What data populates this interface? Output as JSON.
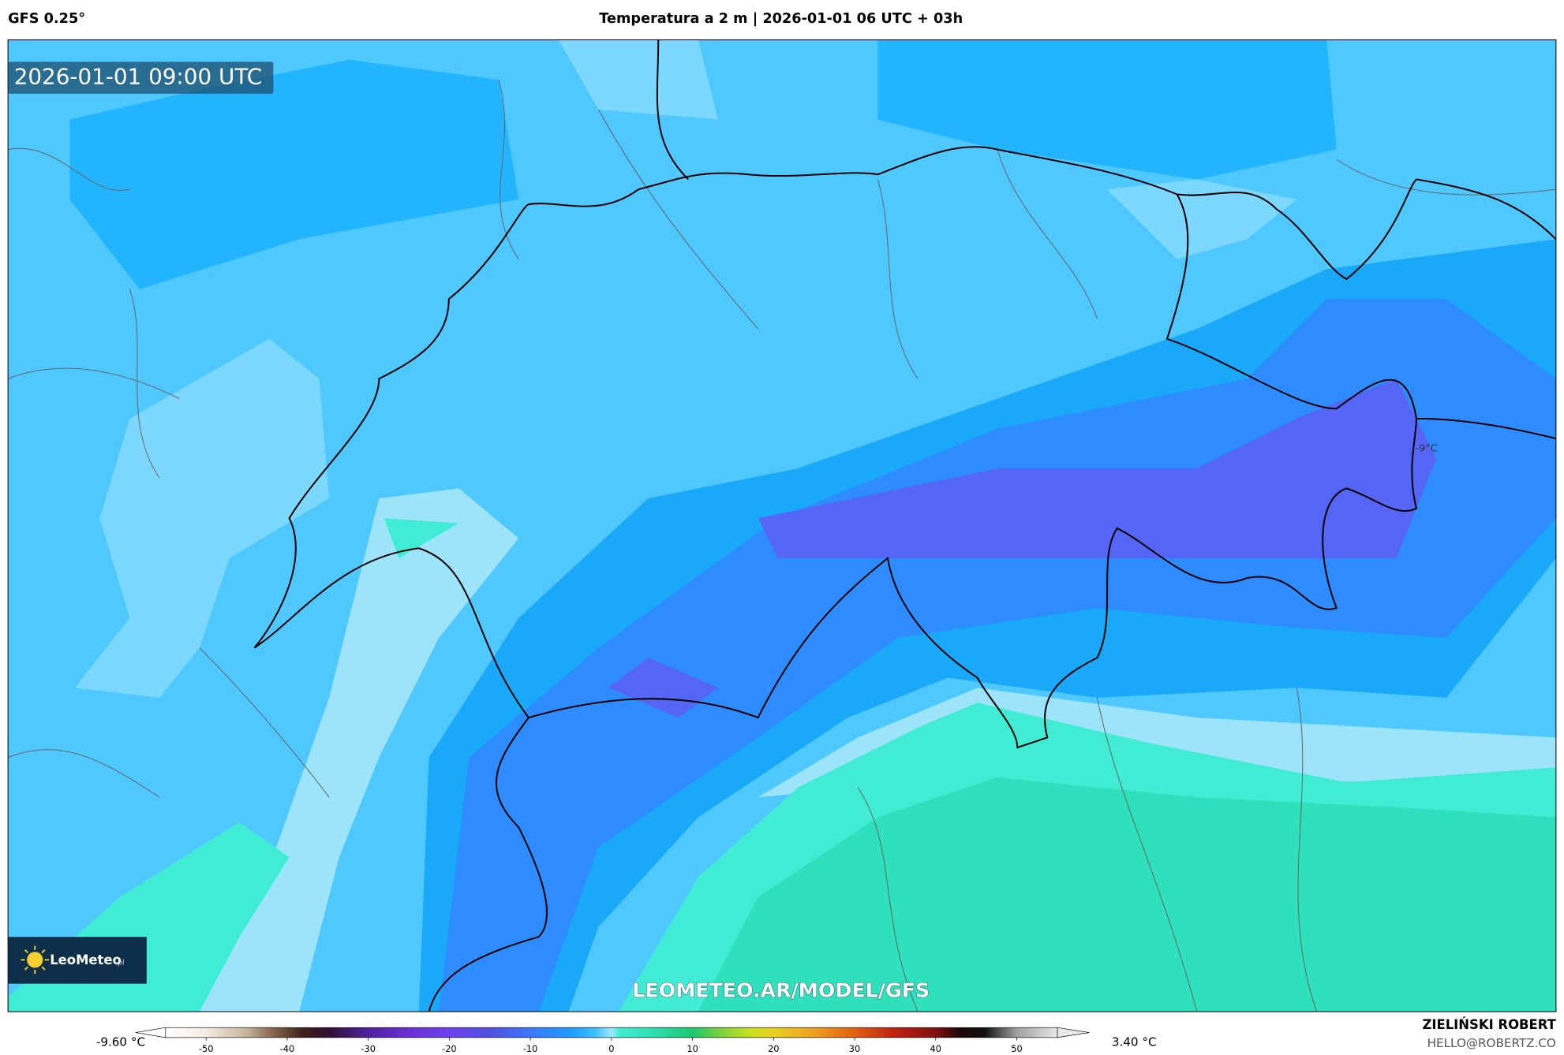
{
  "header": {
    "model": "GFS 0.25°",
    "title": "Temperatura a 2 m | 2026-01-01 06 UTC + 03h"
  },
  "map": {
    "timestamp": "2026-01-01 09:00 UTC",
    "point_label": "-9°C",
    "watermark": "LEOMETEO.AR/MODEL/GFS",
    "logo": {
      "name": "LeoMeteo",
      "suffix": ".pl"
    }
  },
  "colorbar": {
    "min_label": "-9.60 °C",
    "max_label": "3.40 °C",
    "clim": [
      -55,
      55
    ],
    "ticks": [
      -50,
      -40,
      -30,
      -20,
      -10,
      0,
      10,
      20,
      30,
      40,
      50
    ],
    "stops": [
      {
        "value": -55,
        "color": "#ffffff"
      },
      {
        "value": -50,
        "color": "#f2ece4"
      },
      {
        "value": -45,
        "color": "#c8b49a"
      },
      {
        "value": -42,
        "color": "#8a6a50"
      },
      {
        "value": -38,
        "color": "#402018"
      },
      {
        "value": -35,
        "color": "#301030"
      },
      {
        "value": -30,
        "color": "#5020a0"
      },
      {
        "value": -25,
        "color": "#6a30d8"
      },
      {
        "value": -20,
        "color": "#7040f0"
      },
      {
        "value": -15,
        "color": "#5050e0"
      },
      {
        "value": -10,
        "color": "#3b78ff"
      },
      {
        "value": -5,
        "color": "#1e9cff"
      },
      {
        "value": -2,
        "color": "#3cc0ff"
      },
      {
        "value": 0,
        "color": "#9ee6ff"
      },
      {
        "value": 1,
        "color": "#40ecd4"
      },
      {
        "value": 5,
        "color": "#2ee0b0"
      },
      {
        "value": 10,
        "color": "#1cc870"
      },
      {
        "value": 13,
        "color": "#70d040"
      },
      {
        "value": 17,
        "color": "#c8e020"
      },
      {
        "value": 20,
        "color": "#e8d020"
      },
      {
        "value": 25,
        "color": "#f0a020"
      },
      {
        "value": 30,
        "color": "#e06010"
      },
      {
        "value": 35,
        "color": "#c02010"
      },
      {
        "value": 40,
        "color": "#801010"
      },
      {
        "value": 43,
        "color": "#200808"
      },
      {
        "value": 46,
        "color": "#101010"
      },
      {
        "value": 50,
        "color": "#a0a0a0"
      },
      {
        "value": 55,
        "color": "#e8e8e8"
      }
    ]
  },
  "credits": {
    "author": "ZIELIŃSKI ROBERT",
    "contact": "HELLO@ROBERTZ.CO"
  }
}
